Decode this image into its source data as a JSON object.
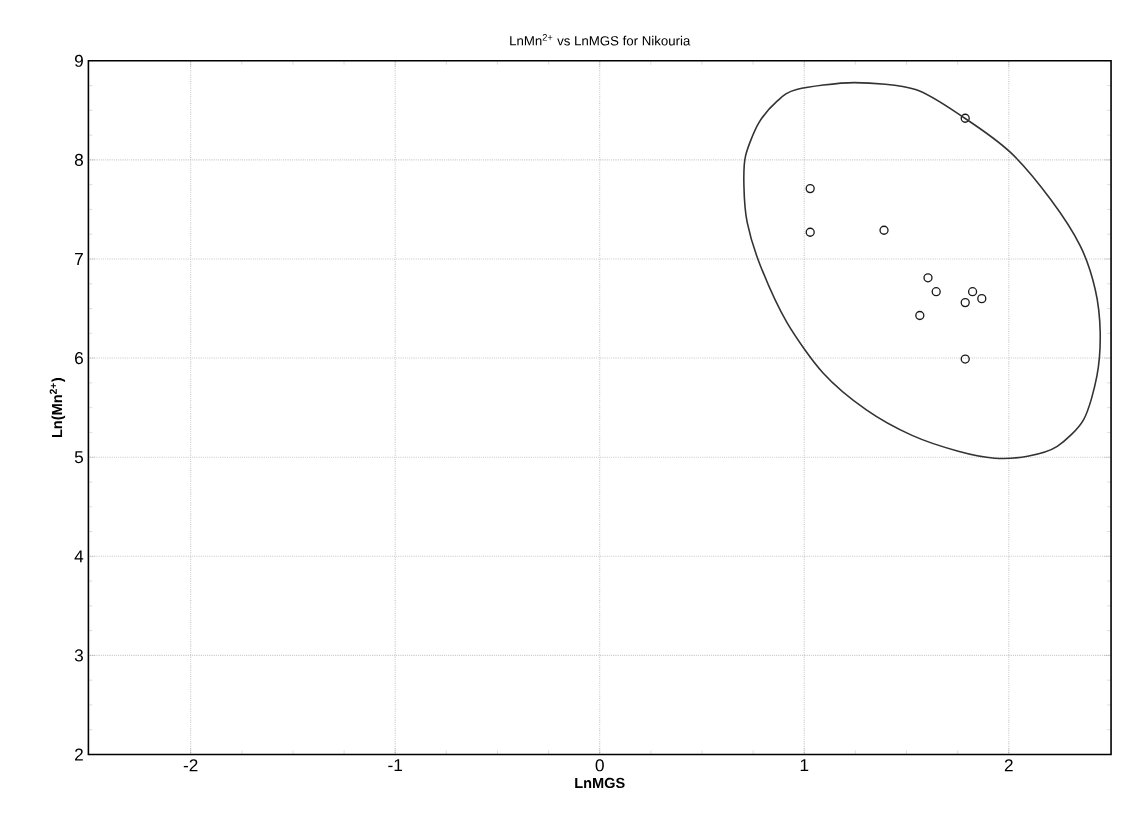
{
  "chart_data": {
    "type": "scatter",
    "title": "LnMn$^{2+}$ vs LnMGS for Nikouria",
    "xlabel": "LnMGS",
    "ylabel": "Ln(Mn$^{2+}$)",
    "xlim": [
      -2.5,
      2.5
    ],
    "ylim": [
      2,
      9
    ],
    "xticks": [
      -2,
      -1,
      0,
      1,
      2
    ],
    "yticks": [
      2,
      3,
      4,
      5,
      6,
      7,
      8,
      9
    ],
    "grid": true,
    "series": [
      {
        "marker": "circle",
        "color": "#1a1a1a",
        "x": [
          1.787,
          1.029,
          1.029,
          1.39,
          1.605,
          1.645,
          1.823,
          1.868,
          1.787,
          1.565,
          1.787
        ],
        "values": [
          8.42,
          7.71,
          7.27,
          7.29,
          6.81,
          6.67,
          6.67,
          6.6,
          6.56,
          6.43,
          5.99
        ]
      }
    ]
  }
}
